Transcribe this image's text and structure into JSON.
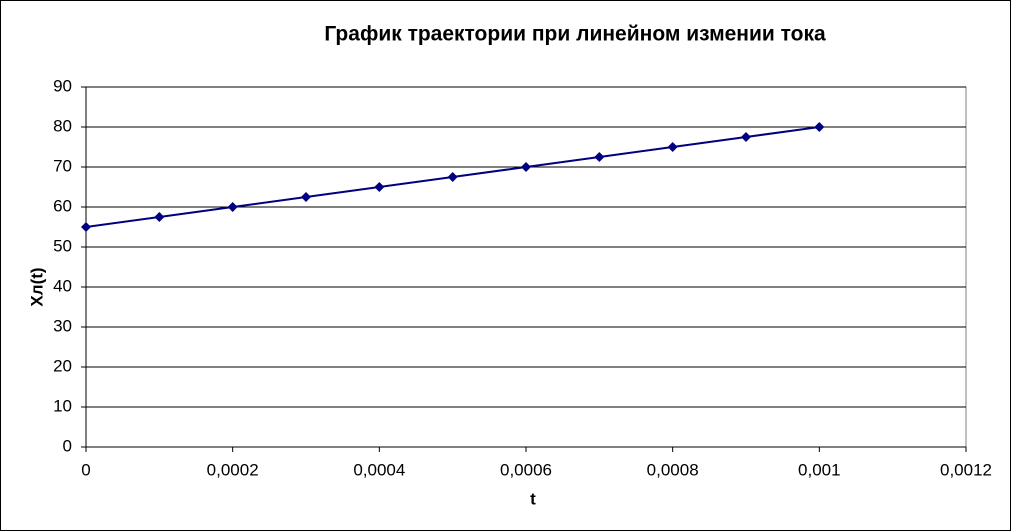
{
  "chart_data": {
    "type": "line",
    "title": "График траектории при линейном измении тока",
    "xlabel": "t",
    "ylabel": "Хл(t)",
    "x": [
      0,
      0.0001,
      0.0002,
      0.0003,
      0.0004,
      0.0005,
      0.0006,
      0.0007,
      0.0008,
      0.0009,
      0.001
    ],
    "series": [
      {
        "color": "#000080",
        "values": [
          55,
          57.5,
          60,
          62.5,
          65,
          67.5,
          70,
          72.5,
          75,
          77.5,
          80
        ]
      }
    ],
    "xlim": [
      0,
      0.0012
    ],
    "xticks": [
      0,
      {
        "value": 0.0002,
        "label": "0,0002"
      },
      {
        "value": 0.0004,
        "label": "0,0004"
      },
      {
        "value": 0.0006,
        "label": "0,0006"
      },
      {
        "value": 0.0008,
        "label": "0,0008"
      },
      {
        "value": 0.001,
        "label": "0,001"
      },
      {
        "value": 0.0012,
        "label": "0,0012"
      }
    ],
    "ylim": [
      0,
      90
    ],
    "yticks": [
      0,
      10,
      20,
      30,
      40,
      50,
      60,
      70,
      80,
      90
    ],
    "grid": true
  }
}
